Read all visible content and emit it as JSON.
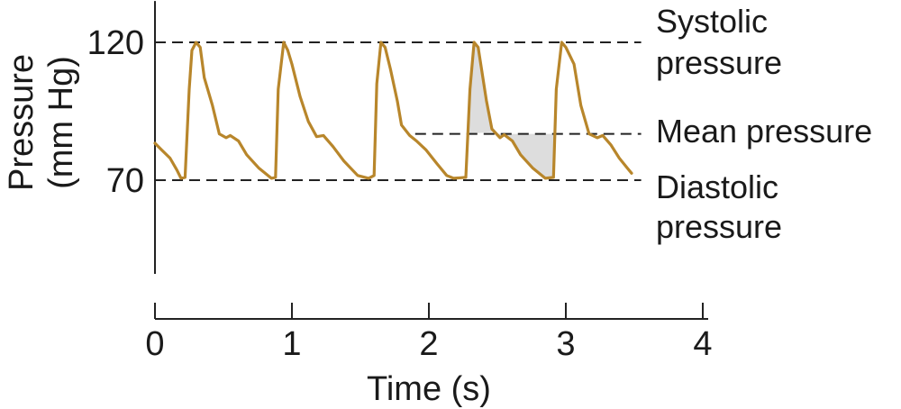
{
  "chart_data": {
    "type": "line",
    "xlabel": "Time (s)",
    "ylabel_line1": "Pressure",
    "ylabel_line2": "(mm Hg)",
    "x_ticks": [
      0,
      1,
      2,
      3,
      4
    ],
    "y_ticks": [
      70,
      120
    ],
    "xlim": [
      0,
      4
    ],
    "ylim": [
      36,
      135
    ],
    "grid": false,
    "series": [
      {
        "color": "#b8862b",
        "points": [
          [
            0.0,
            83.4
          ],
          [
            0.05,
            80.9
          ],
          [
            0.11,
            78.0
          ],
          [
            0.16,
            73.7
          ],
          [
            0.19,
            70.7
          ],
          [
            0.22,
            71.0
          ],
          [
            0.25,
            103.0
          ],
          [
            0.27,
            117.1
          ],
          [
            0.3,
            120.0
          ],
          [
            0.33,
            118.2
          ],
          [
            0.36,
            107.2
          ],
          [
            0.42,
            97.1
          ],
          [
            0.47,
            86.8
          ],
          [
            0.52,
            85.4
          ],
          [
            0.55,
            86.2
          ],
          [
            0.61,
            84.2
          ],
          [
            0.67,
            79.2
          ],
          [
            0.76,
            74.3
          ],
          [
            0.85,
            70.7
          ],
          [
            0.88,
            71.0
          ],
          [
            0.9,
            103.0
          ],
          [
            0.94,
            120.0
          ],
          [
            0.97,
            117.1
          ],
          [
            1.0,
            112.1
          ],
          [
            1.06,
            100.3
          ],
          [
            1.12,
            91.3
          ],
          [
            1.18,
            85.8
          ],
          [
            1.23,
            86.2
          ],
          [
            1.3,
            82.2
          ],
          [
            1.38,
            76.9
          ],
          [
            1.48,
            71.7
          ],
          [
            1.56,
            70.7
          ],
          [
            1.6,
            71.7
          ],
          [
            1.62,
            105.0
          ],
          [
            1.65,
            120.0
          ],
          [
            1.68,
            118.2
          ],
          [
            1.72,
            110.2
          ],
          [
            1.77,
            98.7
          ],
          [
            1.8,
            90.0
          ],
          [
            1.86,
            86.2
          ],
          [
            1.91,
            84.2
          ],
          [
            1.98,
            80.9
          ],
          [
            2.06,
            75.9
          ],
          [
            2.13,
            71.7
          ],
          [
            2.18,
            70.7
          ],
          [
            2.27,
            71.0
          ],
          [
            2.3,
            103.0
          ],
          [
            2.33,
            120.0
          ],
          [
            2.36,
            118.2
          ],
          [
            2.42,
            99.0
          ],
          [
            2.46,
            88.6
          ],
          [
            2.52,
            85.4
          ],
          [
            2.55,
            86.5
          ],
          [
            2.61,
            84.2
          ],
          [
            2.67,
            79.2
          ],
          [
            2.76,
            74.3
          ],
          [
            2.85,
            70.7
          ],
          [
            2.91,
            71.0
          ],
          [
            2.93,
            103.0
          ],
          [
            2.97,
            120.0
          ],
          [
            3.0,
            118.2
          ],
          [
            3.06,
            112.1
          ],
          [
            3.11,
            97.1
          ],
          [
            3.17,
            86.8
          ],
          [
            3.23,
            85.4
          ],
          [
            3.27,
            86.2
          ],
          [
            3.33,
            82.7
          ],
          [
            3.39,
            78.0
          ],
          [
            3.45,
            74.3
          ],
          [
            3.48,
            72.5
          ]
        ]
      }
    ],
    "reference_lines": [
      {
        "value": 120,
        "label_line1": "Systolic",
        "label_line2": "pressure"
      },
      {
        "value": 86.8,
        "label_line1": "Mean pressure",
        "label_line2": ""
      },
      {
        "value": 70,
        "label_line1": "Diastolic",
        "label_line2": "pressure"
      }
    ],
    "mean_pressure_shading": {
      "color": "#dddddd",
      "above_mean_x": [
        2.28,
        2.48
      ],
      "below_mean_x": [
        2.48,
        2.93
      ]
    }
  }
}
